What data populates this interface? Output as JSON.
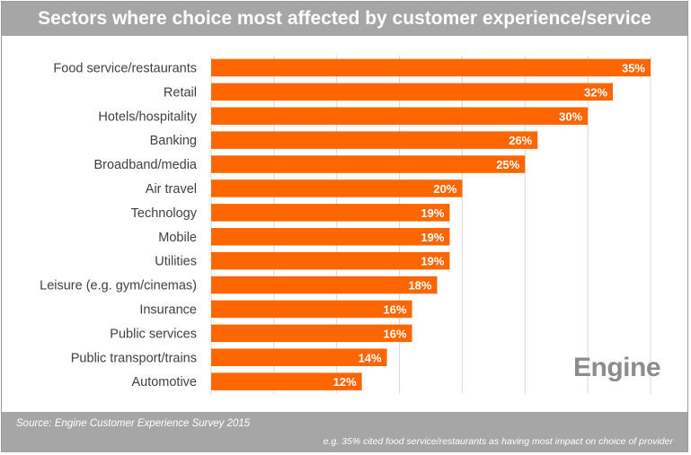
{
  "header": {
    "title": "Sectors where choice most affected by customer experience/service"
  },
  "chart_data": {
    "type": "bar",
    "orientation": "horizontal",
    "title": "Sectors where choice most affected by customer experience/service",
    "categories": [
      "Food service/restaurants",
      "Retail",
      "Hotels/hospitality",
      "Banking",
      "Broadband/media",
      "Air travel",
      "Technology",
      "Mobile",
      "Utilities",
      "Leisure (e.g. gym/cinemas)",
      "Insurance",
      "Public services",
      "Public transport/trains",
      "Automotive"
    ],
    "values": [
      35,
      32,
      30,
      26,
      25,
      20,
      19,
      19,
      19,
      18,
      16,
      16,
      14,
      12
    ],
    "data_labels": [
      "35%",
      "32%",
      "30%",
      "26%",
      "25%",
      "20%",
      "19%",
      "19%",
      "19%",
      "18%",
      "16%",
      "16%",
      "14%",
      "12%"
    ],
    "xlim": [
      0,
      35
    ],
    "grid": true,
    "colors": {
      "bar": "#ff6600",
      "grid": "#d9d9d9",
      "label": "#404040",
      "value_label": "#ffffff"
    }
  },
  "branding": {
    "logo_text": "Engine"
  },
  "footer": {
    "source": "Source: Engine Customer Experience Survey 2015",
    "note": "e.g. 35% cited food service/restaurants as having most impact on choice of provider"
  }
}
